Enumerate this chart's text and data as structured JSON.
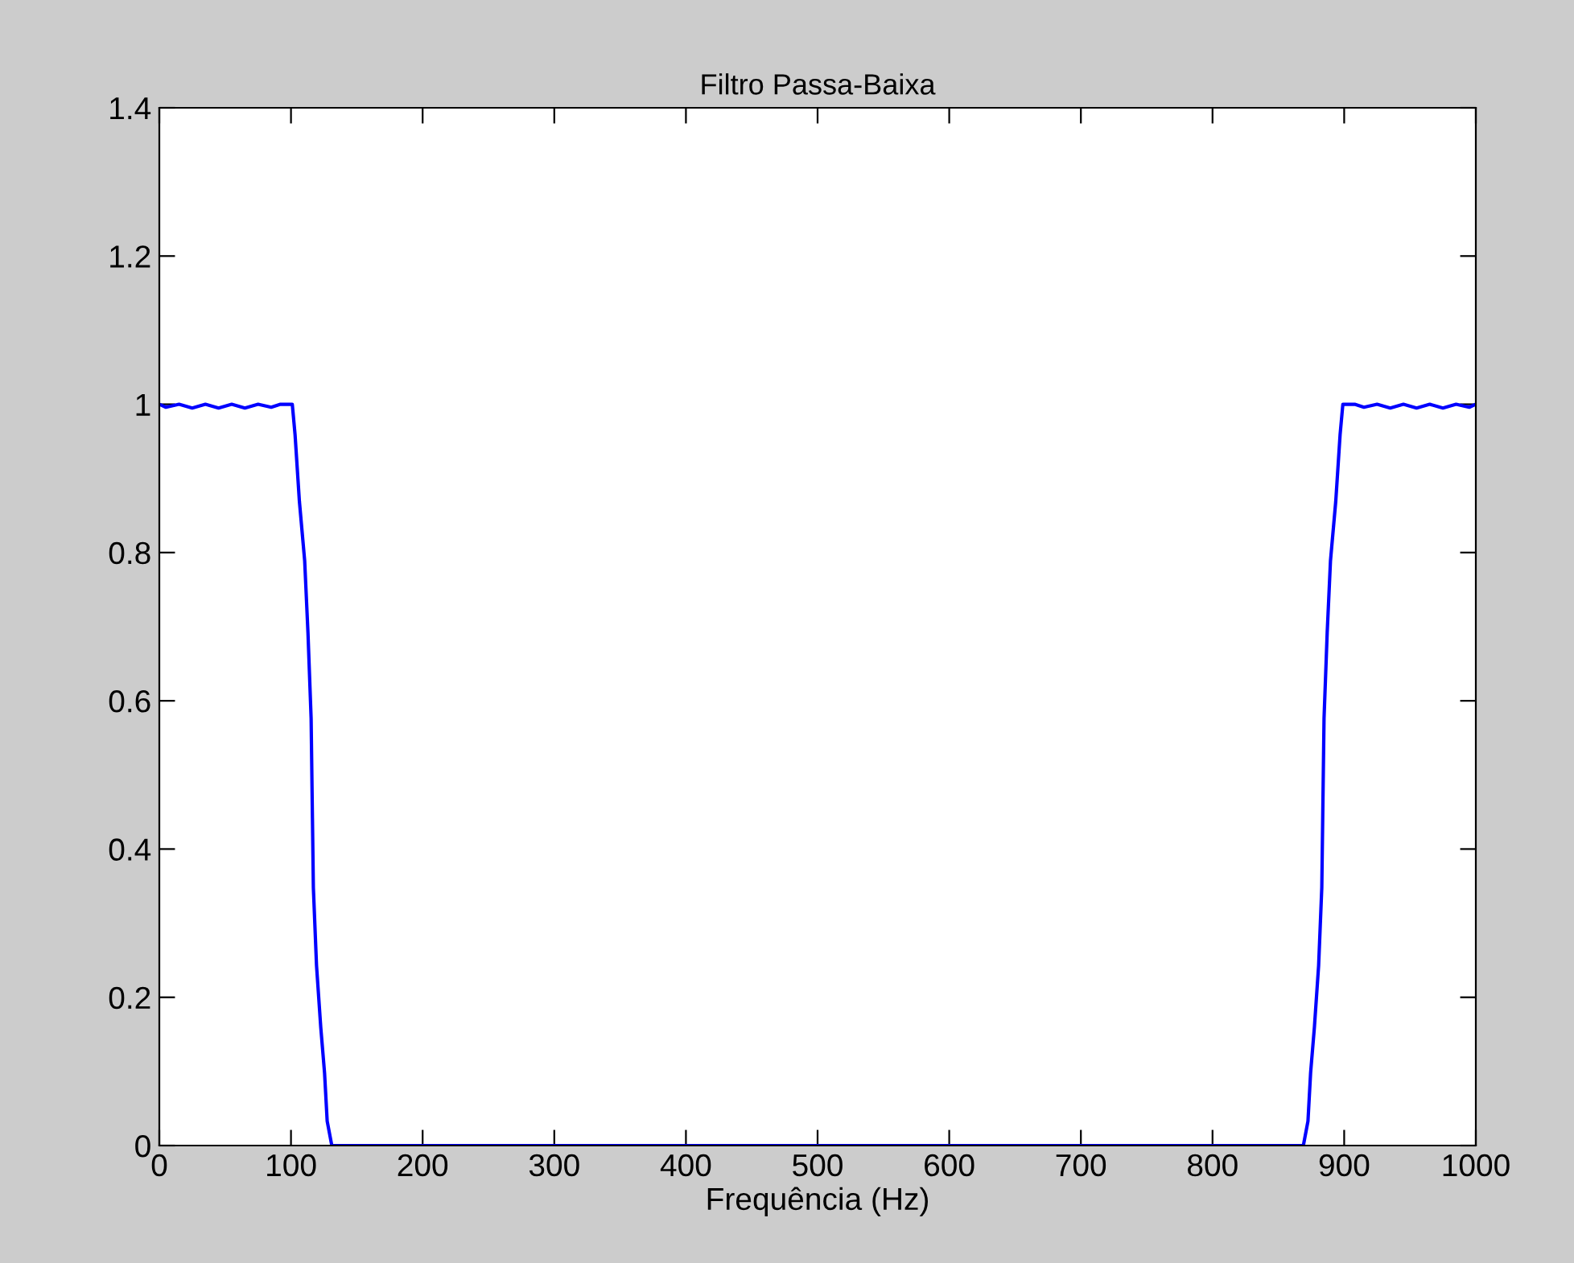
{
  "chart_data": {
    "type": "line",
    "title": "Filtro Passa-Baixa",
    "xlabel": "Frequência (Hz)",
    "series": [
      {
        "color": "#0000ff",
        "x": [
          0,
          5,
          15,
          25,
          35,
          45,
          55,
          65,
          75,
          85,
          92,
          101,
          103.1,
          106.4,
          110.4,
          112.9,
          115.3,
          117.0,
          119.4,
          122.6,
          125.5,
          127.5,
          131,
          500,
          869,
          872.5,
          874.5,
          877.4,
          880.6,
          883.0,
          884.7,
          887.1,
          889.6,
          893.6,
          896.9,
          899,
          908,
          915,
          925,
          935,
          945,
          955,
          965,
          975,
          985,
          995,
          1000
        ],
        "values": [
          1.0,
          0.996,
          1.0,
          0.995,
          1.0,
          0.995,
          1.0,
          0.995,
          1.0,
          0.996,
          1.0,
          1.0,
          0.959,
          0.869,
          0.789,
          0.692,
          0.576,
          0.348,
          0.243,
          0.16,
          0.098,
          0.033,
          0,
          0,
          0,
          0.033,
          0.098,
          0.16,
          0.243,
          0.348,
          0.576,
          0.692,
          0.789,
          0.869,
          0.959,
          1.0,
          1.0,
          0.996,
          1.0,
          0.995,
          1.0,
          0.995,
          1.0,
          0.995,
          1.0,
          0.996,
          1.0
        ]
      }
    ],
    "xlim": [
      0,
      1000
    ],
    "ylim": [
      0,
      1.4
    ],
    "xticks": [
      0,
      100,
      200,
      300,
      400,
      500,
      600,
      700,
      800,
      900,
      1000
    ],
    "yticks": [
      0,
      0.2,
      0.4,
      0.6,
      0.8,
      1,
      1.2,
      1.4
    ],
    "grid": false,
    "legend": false,
    "line_style": "solid",
    "marker": "none"
  }
}
